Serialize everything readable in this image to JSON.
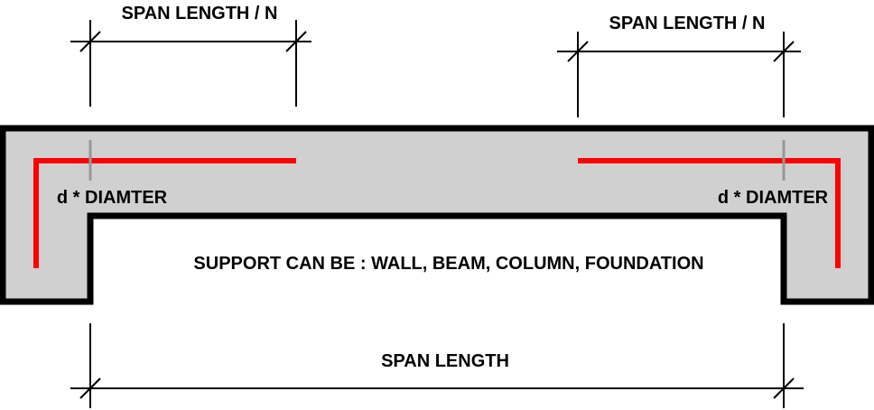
{
  "labels": {
    "top_left_dimension": "SPAN LENGTH / N",
    "top_right_dimension": "SPAN LENGTH / N",
    "left_anchorage": "d * DIAMTER",
    "right_anchorage": "d * DIAMTER",
    "support_note": "SUPPORT CAN BE : WALL, BEAM, COLUMN, FOUNDATION",
    "bottom_dimension": "SPAN LENGTH"
  },
  "colors": {
    "concrete_fill": "#d0d0d0",
    "outline": "#000000",
    "reinforcement": "#ff0000",
    "anchorage_marker": "#999999",
    "background": "#ffffff"
  }
}
